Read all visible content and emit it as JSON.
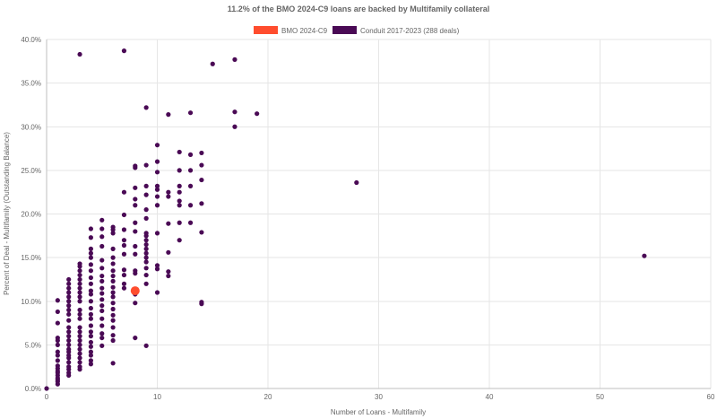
{
  "chart_data": {
    "type": "scatter",
    "title": "11.2% of the BMO 2024-C9 loans are backed by Multifamily collateral",
    "xlabel": "Number of Loans - Multifamily",
    "ylabel": "Percent of Deal - Multifamily (Outstanding Balance)",
    "xlim": [
      0,
      60
    ],
    "ylim": [
      0,
      40
    ],
    "x_ticks": [
      0,
      10,
      20,
      30,
      40,
      50,
      60
    ],
    "y_ticks": [
      0,
      5,
      10,
      15,
      20,
      25,
      30,
      35,
      40
    ],
    "x_tick_labels": [
      "0",
      "10",
      "20",
      "30",
      "40",
      "50",
      "60"
    ],
    "y_tick_labels": [
      "0.0%",
      "5.0%",
      "10.0%",
      "15.0%",
      "20.0%",
      "25.0%",
      "30.0%",
      "35.0%",
      "40.0%"
    ],
    "grid": true,
    "legend_position": "top-center",
    "series": [
      {
        "name": "BMO 2024-C9",
        "color": "#ff4d2e",
        "points": [
          [
            8,
            11.2
          ]
        ]
      },
      {
        "name": "Conduit 2017-2023 (288 deals)",
        "color": "#4a0a55",
        "points": [
          [
            0,
            0
          ],
          [
            1,
            0.5
          ],
          [
            1,
            0.8
          ],
          [
            1,
            1.0
          ],
          [
            1,
            1.2
          ],
          [
            1,
            1.5
          ],
          [
            1,
            1.8
          ],
          [
            1,
            2.0
          ],
          [
            1,
            2.3
          ],
          [
            1,
            2.6
          ],
          [
            1,
            3.2
          ],
          [
            1,
            3.8
          ],
          [
            1,
            4.2
          ],
          [
            1,
            5.0
          ],
          [
            1,
            5.5
          ],
          [
            1,
            5.8
          ],
          [
            1,
            7.5
          ],
          [
            1,
            8.8
          ],
          [
            1,
            10.1
          ],
          [
            2,
            1.5
          ],
          [
            2,
            1.8
          ],
          [
            2,
            2.2
          ],
          [
            2,
            2.5
          ],
          [
            2,
            3.0
          ],
          [
            2,
            3.5
          ],
          [
            2,
            3.8
          ],
          [
            2,
            4.2
          ],
          [
            2,
            4.5
          ],
          [
            2,
            5.0
          ],
          [
            2,
            5.5
          ],
          [
            2,
            6.0
          ],
          [
            2,
            6.5
          ],
          [
            2,
            7.0
          ],
          [
            2,
            7.8
          ],
          [
            2,
            8.5
          ],
          [
            2,
            9.0
          ],
          [
            2,
            9.5
          ],
          [
            2,
            10.0
          ],
          [
            2,
            10.5
          ],
          [
            2,
            11.0
          ],
          [
            2,
            11.5
          ],
          [
            2,
            12.0
          ],
          [
            2,
            12.5
          ],
          [
            3,
            2.2
          ],
          [
            3,
            2.5
          ],
          [
            3,
            3.0
          ],
          [
            3,
            3.5
          ],
          [
            3,
            4.0
          ],
          [
            3,
            4.5
          ],
          [
            3,
            5.0
          ],
          [
            3,
            5.5
          ],
          [
            3,
            6.0
          ],
          [
            3,
            6.5
          ],
          [
            3,
            7.0
          ],
          [
            3,
            8.0
          ],
          [
            3,
            8.5
          ],
          [
            3,
            9.0
          ],
          [
            3,
            10.0
          ],
          [
            3,
            10.5
          ],
          [
            3,
            11.0
          ],
          [
            3,
            11.5
          ],
          [
            3,
            12.0
          ],
          [
            3,
            12.5
          ],
          [
            3,
            13.0
          ],
          [
            3,
            13.5
          ],
          [
            3,
            14.0
          ],
          [
            3,
            14.3
          ],
          [
            3,
            38.3
          ],
          [
            4,
            2.8
          ],
          [
            4,
            3.2
          ],
          [
            4,
            3.8
          ],
          [
            4,
            4.2
          ],
          [
            4,
            4.8
          ],
          [
            4,
            5.3
          ],
          [
            4,
            6.0
          ],
          [
            4,
            6.5
          ],
          [
            4,
            7.2
          ],
          [
            4,
            8.0
          ],
          [
            4,
            8.5
          ],
          [
            4,
            9.2
          ],
          [
            4,
            10.0
          ],
          [
            4,
            10.8
          ],
          [
            4,
            11.2
          ],
          [
            4,
            12.0
          ],
          [
            4,
            12.7
          ],
          [
            4,
            13.5
          ],
          [
            4,
            14.2
          ],
          [
            4,
            15.0
          ],
          [
            4,
            15.5
          ],
          [
            4,
            16.0
          ],
          [
            4,
            17.3
          ],
          [
            4,
            18.3
          ],
          [
            5,
            4.9
          ],
          [
            5,
            5.8
          ],
          [
            5,
            6.3
          ],
          [
            5,
            7.2
          ],
          [
            5,
            8.0
          ],
          [
            5,
            8.9
          ],
          [
            5,
            9.5
          ],
          [
            5,
            10.2
          ],
          [
            5,
            10.9
          ],
          [
            5,
            11.5
          ],
          [
            5,
            12.3
          ],
          [
            5,
            12.9
          ],
          [
            5,
            13.8
          ],
          [
            5,
            14.7
          ],
          [
            5,
            16.3
          ],
          [
            5,
            17.4
          ],
          [
            5,
            18.3
          ],
          [
            5,
            19.3
          ],
          [
            6,
            2.9
          ],
          [
            6,
            5.5
          ],
          [
            6,
            6.1
          ],
          [
            6,
            7.0
          ],
          [
            6,
            7.8
          ],
          [
            6,
            8.4
          ],
          [
            6,
            9.1
          ],
          [
            6,
            9.8
          ],
          [
            6,
            10.5
          ],
          [
            6,
            11.0
          ],
          [
            6,
            11.6
          ],
          [
            6,
            12.3
          ],
          [
            6,
            12.9
          ],
          [
            6,
            13.5
          ],
          [
            6,
            14.3
          ],
          [
            6,
            15.0
          ],
          [
            6,
            16.0
          ],
          [
            6,
            17.8
          ],
          [
            6,
            18.2
          ],
          [
            6,
            18.5
          ],
          [
            7,
            11.5
          ],
          [
            7,
            12.0
          ],
          [
            7,
            13.0
          ],
          [
            7,
            13.6
          ],
          [
            7,
            15.4
          ],
          [
            7,
            16.4
          ],
          [
            7,
            17.0
          ],
          [
            7,
            18.2
          ],
          [
            7,
            19.9
          ],
          [
            7,
            22.5
          ],
          [
            7,
            38.7
          ],
          [
            8,
            5.8
          ],
          [
            8,
            9.8
          ],
          [
            8,
            10.8
          ],
          [
            8,
            11.2
          ],
          [
            8,
            13.2
          ],
          [
            8,
            13.5
          ],
          [
            8,
            15.4
          ],
          [
            8,
            16.3
          ],
          [
            8,
            18.0
          ],
          [
            8,
            19.0
          ],
          [
            8,
            21.0
          ],
          [
            8,
            21.7
          ],
          [
            8,
            23.0
          ],
          [
            8,
            25.3
          ],
          [
            8,
            25.5
          ],
          [
            9,
            4.9
          ],
          [
            9,
            12.0
          ],
          [
            9,
            13.0
          ],
          [
            9,
            13.8
          ],
          [
            9,
            14.5
          ],
          [
            9,
            15.0
          ],
          [
            9,
            15.5
          ],
          [
            9,
            16.0
          ],
          [
            9,
            16.5
          ],
          [
            9,
            17.0
          ],
          [
            9,
            17.5
          ],
          [
            9,
            17.8
          ],
          [
            9,
            19.5
          ],
          [
            9,
            20.5
          ],
          [
            9,
            22.2
          ],
          [
            9,
            23.2
          ],
          [
            9,
            25.6
          ],
          [
            9,
            32.2
          ],
          [
            10,
            11.0
          ],
          [
            10,
            13.7
          ],
          [
            10,
            14.1
          ],
          [
            10,
            17.8
          ],
          [
            10,
            21.0
          ],
          [
            10,
            22.0
          ],
          [
            10,
            22.8
          ],
          [
            10,
            23.2
          ],
          [
            10,
            24.8
          ],
          [
            10,
            26.0
          ],
          [
            10,
            27.9
          ],
          [
            11,
            12.9
          ],
          [
            11,
            13.4
          ],
          [
            11,
            15.6
          ],
          [
            11,
            18.9
          ],
          [
            11,
            22.0
          ],
          [
            11,
            22.5
          ],
          [
            11,
            31.4
          ],
          [
            12,
            17.0
          ],
          [
            12,
            19.0
          ],
          [
            12,
            21.0
          ],
          [
            12,
            21.5
          ],
          [
            12,
            22.5
          ],
          [
            12,
            23.2
          ],
          [
            12,
            25.0
          ],
          [
            12,
            27.1
          ],
          [
            13,
            19.0
          ],
          [
            13,
            21.0
          ],
          [
            13,
            23.2
          ],
          [
            13,
            25.0
          ],
          [
            13,
            26.8
          ],
          [
            13,
            31.6
          ],
          [
            14,
            9.7
          ],
          [
            14,
            9.9
          ],
          [
            14,
            17.9
          ],
          [
            14,
            21.2
          ],
          [
            14,
            23.9
          ],
          [
            14,
            25.6
          ],
          [
            14,
            27.0
          ],
          [
            15,
            37.2
          ],
          [
            17,
            30.0
          ],
          [
            17,
            31.7
          ],
          [
            17,
            37.7
          ],
          [
            19,
            31.5
          ],
          [
            28,
            23.6
          ],
          [
            54,
            15.2
          ]
        ]
      }
    ]
  }
}
